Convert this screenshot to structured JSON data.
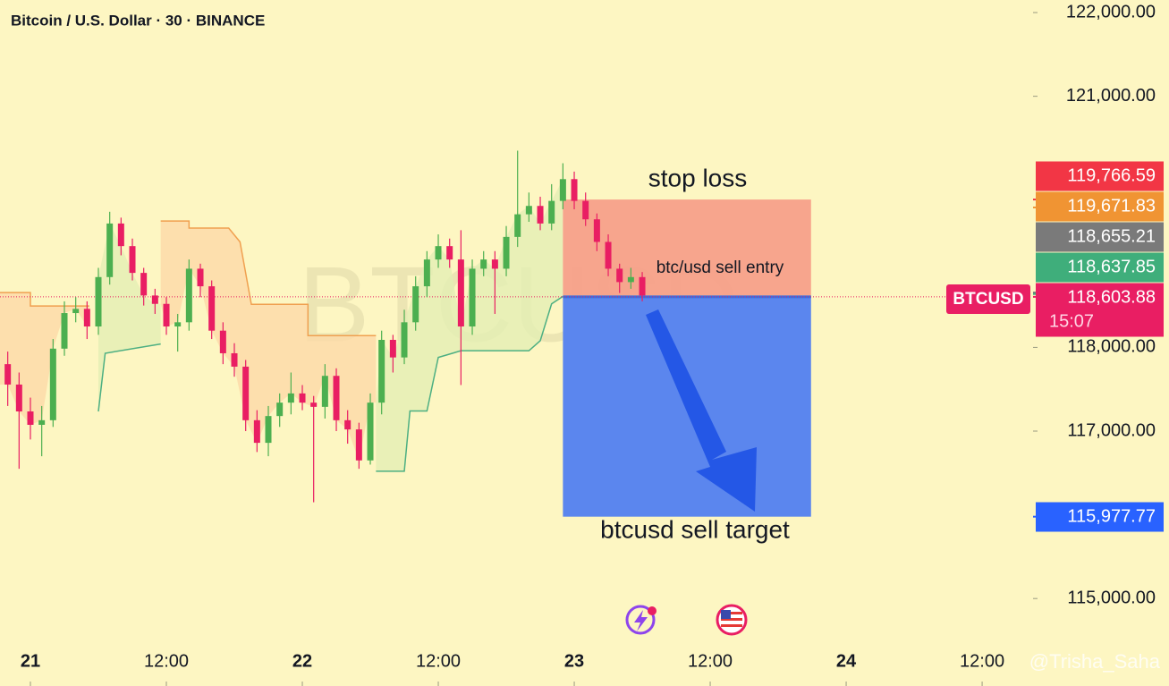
{
  "chart_data": {
    "type": "candlestick",
    "title": "Bitcoin / U.S. Dollar · 30 · BINANCE",
    "watermark": "BTCUSD",
    "x": [
      -2,
      -1,
      0,
      1,
      2,
      3,
      4,
      5,
      6,
      7,
      8,
      9,
      10,
      11,
      12,
      13,
      14,
      15,
      16,
      17,
      18,
      19,
      20,
      21,
      22,
      23,
      24,
      25,
      26,
      27,
      28,
      29,
      30,
      31,
      32,
      33,
      34,
      35,
      36,
      37,
      38,
      39,
      40,
      41,
      42,
      43,
      44,
      45,
      46,
      47,
      48,
      49,
      50,
      51,
      52,
      53,
      54
    ],
    "open": [
      117800,
      117556,
      117235,
      117075,
      117130,
      117985,
      118410,
      118460,
      118250,
      118840,
      119480,
      119210,
      118890,
      118620,
      118520,
      118250,
      118300,
      118940,
      118730,
      118200,
      117930,
      117770,
      117130,
      116860,
      117180,
      117340,
      117450,
      117340,
      117290,
      117660,
      117130,
      117020,
      116650,
      117340,
      118090,
      117880,
      118300,
      118730,
      119050,
      119210,
      119050,
      118250,
      118940,
      119050,
      118940,
      119320,
      119590,
      119690,
      119480,
      119750,
      120010,
      119750,
      119530,
      119260,
      118940,
      118780,
      118840
    ],
    "high": [
      117950,
      117700,
      117400,
      117300,
      118100,
      118550,
      118600,
      118550,
      118950,
      119620,
      119550,
      119300,
      118950,
      118700,
      118600,
      118400,
      119050,
      119000,
      118800,
      118300,
      118050,
      117850,
      117250,
      117300,
      117450,
      117700,
      117550,
      117420,
      117800,
      117750,
      117250,
      117100,
      117450,
      118200,
      118150,
      118450,
      118850,
      119150,
      119350,
      119300,
      119400,
      119050,
      119150,
      119150,
      119450,
      120350,
      119850,
      119800,
      119950,
      120200,
      120100,
      119850,
      119600,
      119350,
      119000,
      118950,
      118900
    ],
    "low": [
      117300,
      116550,
      116900,
      116700,
      117050,
      117900,
      118300,
      118100,
      118150,
      118750,
      119100,
      118800,
      118500,
      118400,
      118150,
      117950,
      118200,
      118600,
      118100,
      117800,
      117650,
      117000,
      116750,
      116700,
      117050,
      117200,
      117250,
      116150,
      117150,
      117000,
      116850,
      116550,
      116600,
      117200,
      117700,
      117800,
      118200,
      118600,
      118950,
      118950,
      117550,
      118150,
      118850,
      118400,
      118850,
      119200,
      119500,
      119400,
      119400,
      119650,
      119650,
      119450,
      119150,
      118850,
      118650,
      118700,
      118550
    ],
    "close": [
      117556,
      117235,
      117075,
      117130,
      117985,
      118410,
      118460,
      118250,
      118840,
      119480,
      119210,
      118890,
      118620,
      118520,
      118250,
      118300,
      118940,
      118730,
      118200,
      117930,
      117770,
      117130,
      116860,
      117180,
      117340,
      117450,
      117340,
      117290,
      117660,
      117130,
      117020,
      116650,
      117340,
      118090,
      117880,
      118300,
      118730,
      119050,
      119210,
      119050,
      118250,
      118940,
      119050,
      118940,
      119320,
      119590,
      119690,
      119480,
      119750,
      120010,
      119750,
      119530,
      119260,
      118940,
      118780,
      118840,
      118620
    ],
    "up_color": "#4caf50",
    "down_color": "#e91e63",
    "trend_lines": [
      {
        "color": "#f0a050",
        "fill": "#fcd9a8",
        "x": [
          -2.7,
          0,
          0,
          5.2,
          5.3,
          11.5,
          14,
          14,
          17.5,
          18.5,
          19.5,
          24.5,
          24.5,
          30.5
        ],
        "values": [
          118655,
          118655,
          118495,
          118495,
          null,
          119510,
          119510,
          119425,
          119425,
          119260,
          118515,
          118515,
          118140,
          118140
        ]
      },
      {
        "color": "#4caf82",
        "fill": "#e3efb4",
        "x": [
          6,
          6.6,
          11.5,
          12,
          30.5,
          33,
          33.5,
          35,
          36,
          38,
          44,
          45,
          46,
          47
        ],
        "values": [
          117235,
          117930,
          118040,
          null,
          116520,
          116520,
          117240,
          117240,
          117880,
          117960,
          117960,
          118080,
          118520,
          118610
        ]
      }
    ],
    "position": {
      "start_x": 47,
      "end_x": 68.9,
      "stop": 119766.59,
      "entry": 118603.88,
      "target": 115977.77,
      "stop_label": "stop loss",
      "entry_label": "btc/usd sell entry",
      "target_label": "btcusd sell target"
    },
    "xlim": [
      -2.684,
      88.1
    ],
    "xticks": [
      {
        "value": 0,
        "label": "21"
      },
      {
        "value": 12,
        "label": "12:00"
      },
      {
        "value": 24,
        "label": "22"
      },
      {
        "value": 36,
        "label": "12:00"
      },
      {
        "value": 48,
        "label": "23"
      },
      {
        "value": 60,
        "label": "12:00"
      },
      {
        "value": 72,
        "label": "24"
      },
      {
        "value": 84,
        "label": "12:00"
      }
    ],
    "ylim": [
      113955,
      122150
    ],
    "yticks": [
      {
        "value": 115000,
        "label": "115,000.00"
      },
      {
        "value": 117000,
        "label": "117,000.00"
      },
      {
        "value": 118000,
        "label": "118,000.00"
      },
      {
        "value": 121000,
        "label": "121,000.00"
      },
      {
        "value": 122000,
        "label": "122,000.00"
      }
    ],
    "price_tags": [
      {
        "value": 119766.59,
        "label": "119,766.59",
        "color": "#f23645"
      },
      {
        "value": 119671.83,
        "label": "119,671.83",
        "color": "#f09433"
      },
      {
        "value": 118655.21,
        "label": "118,655.21",
        "color": "#7a7a7a"
      },
      {
        "value": 118637.85,
        "label": "118,637.85",
        "color": "#3fae7b"
      },
      {
        "value": 118603.88,
        "label": "118,603.88",
        "color": "#e91e63"
      },
      {
        "value": 115977.77,
        "label": "115,977.77",
        "color": "#2962ff"
      }
    ],
    "symbol": "BTCUSD",
    "countdown": "15:07",
    "author": "@Trisha_Saha"
  }
}
